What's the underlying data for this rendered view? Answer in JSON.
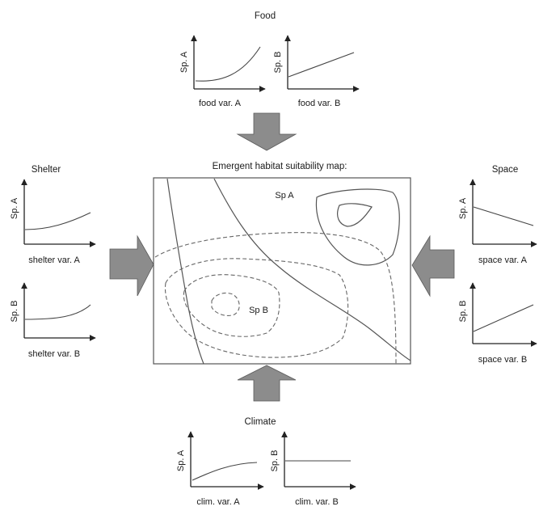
{
  "map": {
    "title": "Emergent habitat suitability map:",
    "label_sp_a": "Sp A",
    "label_sp_b": "Sp B"
  },
  "panels": {
    "food": {
      "title": "Food",
      "a": {
        "ylabel": "Sp. A",
        "xlabel": "food var. A"
      },
      "b": {
        "ylabel": "Sp. B",
        "xlabel": "food var. B"
      }
    },
    "shelter": {
      "title": "Shelter",
      "a": {
        "ylabel": "Sp. A",
        "xlabel": "shelter var. A"
      },
      "b": {
        "ylabel": "Sp. B",
        "xlabel": "shelter var. B"
      }
    },
    "space": {
      "title": "Space",
      "a": {
        "ylabel": "Sp. A",
        "xlabel": "space var. A"
      },
      "b": {
        "ylabel": "Sp. B",
        "xlabel": "space var. B"
      }
    },
    "climate": {
      "title": "Climate",
      "a": {
        "ylabel": "Sp. A",
        "xlabel": "clim. var. A"
      },
      "b": {
        "ylabel": "Sp. B",
        "xlabel": "clim. var. B"
      }
    }
  }
}
